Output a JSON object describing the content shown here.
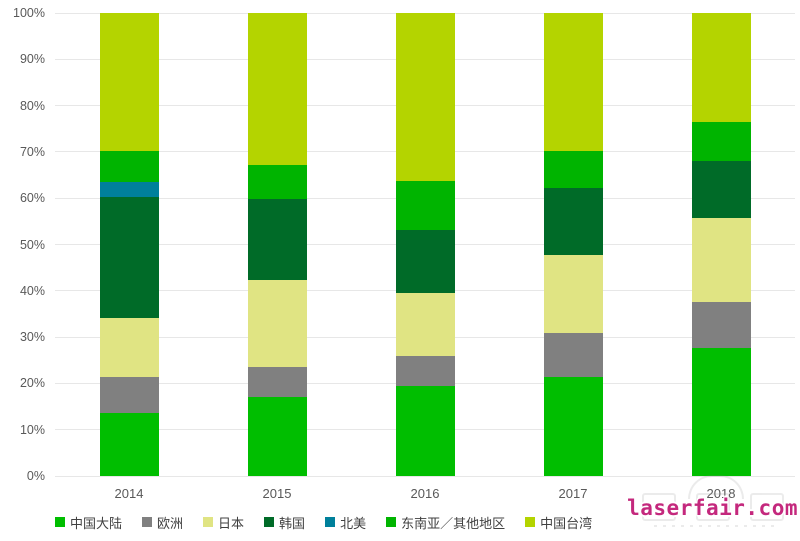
{
  "chart_data": {
    "type": "bar",
    "stacked": true,
    "percent_stacked": true,
    "title": "",
    "xlabel": "",
    "ylabel": "",
    "ylim": [
      0,
      100
    ],
    "grid": true,
    "legend_position": "bottom",
    "categories": [
      "2014",
      "2015",
      "2016",
      "2017",
      "2018"
    ],
    "y_ticks": [
      "100%",
      "90%",
      "80%",
      "70%",
      "60%",
      "50%",
      "40%",
      "30%",
      "20%",
      "10%",
      "0%"
    ],
    "series": [
      {
        "name": "中国大陆",
        "color": "#00be00",
        "values": [
          13.7,
          17.0,
          19.5,
          21.3,
          27.6
        ]
      },
      {
        "name": "欧洲",
        "color": "#808080",
        "values": [
          7.6,
          6.5,
          6.5,
          9.6,
          9.9
        ]
      },
      {
        "name": "日本",
        "color": "#e0e483",
        "values": [
          12.9,
          18.9,
          13.5,
          16.8,
          18.2
        ]
      },
      {
        "name": "韩国",
        "color": "#006b28",
        "values": [
          26.1,
          17.5,
          13.7,
          14.5,
          12.4
        ]
      },
      {
        "name": "北美",
        "color": "#00809b",
        "values": [
          3.2,
          0,
          0,
          0,
          0
        ]
      },
      {
        "name": "东南亚／其他地区",
        "color": "#00b400",
        "values": [
          6.7,
          7.2,
          10.6,
          8.1,
          8.4
        ]
      },
      {
        "name": "中国台湾",
        "color": "#b4d400",
        "values": [
          29.8,
          32.9,
          36.2,
          29.7,
          23.5
        ]
      }
    ]
  },
  "watermark": {
    "text": "laserfair.com",
    "color": "#c4287d"
  }
}
